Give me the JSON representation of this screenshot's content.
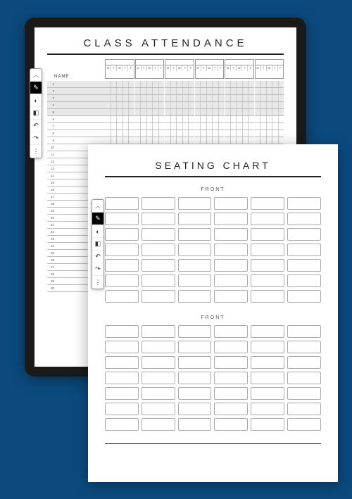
{
  "colors": {
    "background": "#0c4a7e",
    "tablet_body": "#1a1a1a",
    "paper": "#ffffff",
    "rule": "#222222",
    "shade": "#e8e8e8",
    "border_light": "#bbbbbb"
  },
  "attendance": {
    "title": "CLASS ATTENDANCE",
    "name_header": "NAME",
    "days": [
      "M",
      "T",
      "W",
      "T",
      "F"
    ],
    "week_count": 6,
    "row_count": 30,
    "row_numbers": [
      "1",
      "2",
      "3",
      "4",
      "5",
      "6",
      "7",
      "8",
      "9",
      "10",
      "11",
      "12",
      "13",
      "14",
      "15",
      "16",
      "17",
      "18",
      "19",
      "20",
      "21",
      "22",
      "23",
      "24",
      "25",
      "26",
      "27",
      "28",
      "29",
      "30"
    ],
    "shaded_rows": [
      0,
      1,
      2,
      3,
      4
    ]
  },
  "seating": {
    "title": "SEATING CHART",
    "sections": [
      {
        "label": "FRONT",
        "rows": 7,
        "cols": 6
      },
      {
        "label": "FRONT",
        "rows": 7,
        "cols": 6
      }
    ]
  },
  "toolbar": {
    "chevron": "up",
    "items": [
      {
        "icon": "pen",
        "active": true
      },
      {
        "icon": "paint",
        "active": false
      },
      {
        "icon": "eraser",
        "active": false
      },
      {
        "icon": "undo",
        "active": false
      },
      {
        "icon": "redo",
        "active": false
      },
      {
        "icon": "more",
        "active": false
      }
    ]
  }
}
